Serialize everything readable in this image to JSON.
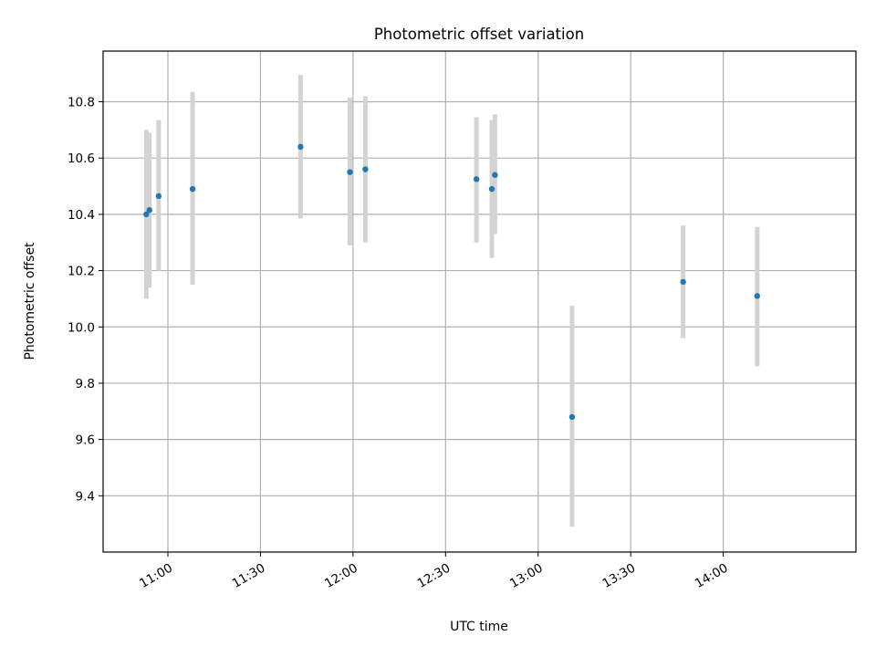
{
  "chart_data": {
    "type": "scatter",
    "title": "Photometric offset variation",
    "xlabel": "UTC time",
    "ylabel": "Photometric offset",
    "x_axis": "time",
    "xlim": [
      "10:39",
      "14:43"
    ],
    "ylim": [
      9.2,
      10.98
    ],
    "x_ticks": [
      "11:00",
      "11:30",
      "12:00",
      "12:30",
      "13:00",
      "13:30",
      "14:00"
    ],
    "y_ticks": [
      "9.4",
      "9.6",
      "9.8",
      "10.0",
      "10.2",
      "10.4",
      "10.6",
      "10.8"
    ],
    "grid": true,
    "legend": "none",
    "marker_color": "#1f77b4",
    "errorbar_color": "#d3d3d3",
    "points": [
      {
        "x": "10:53",
        "y": 10.4,
        "ylow": 10.1,
        "yhigh": 10.7
      },
      {
        "x": "10:54",
        "y": 10.415,
        "ylow": 10.14,
        "yhigh": 10.69
      },
      {
        "x": "10:57",
        "y": 10.465,
        "ylow": 10.2,
        "yhigh": 10.735
      },
      {
        "x": "11:08",
        "y": 10.49,
        "ylow": 10.15,
        "yhigh": 10.835
      },
      {
        "x": "11:43",
        "y": 10.64,
        "ylow": 10.385,
        "yhigh": 10.895
      },
      {
        "x": "11:59",
        "y": 10.55,
        "ylow": 10.29,
        "yhigh": 10.815
      },
      {
        "x": "12:04",
        "y": 10.56,
        "ylow": 10.3,
        "yhigh": 10.82
      },
      {
        "x": "12:40",
        "y": 10.525,
        "ylow": 10.3,
        "yhigh": 10.745
      },
      {
        "x": "12:45",
        "y": 10.49,
        "ylow": 10.245,
        "yhigh": 10.735
      },
      {
        "x": "12:46",
        "y": 10.54,
        "ylow": 10.33,
        "yhigh": 10.755
      },
      {
        "x": "13:11",
        "y": 9.68,
        "ylow": 9.29,
        "yhigh": 10.075
      },
      {
        "x": "13:47",
        "y": 10.16,
        "ylow": 9.96,
        "yhigh": 10.36
      },
      {
        "x": "14:11",
        "y": 10.11,
        "ylow": 9.86,
        "yhigh": 10.355
      }
    ]
  }
}
